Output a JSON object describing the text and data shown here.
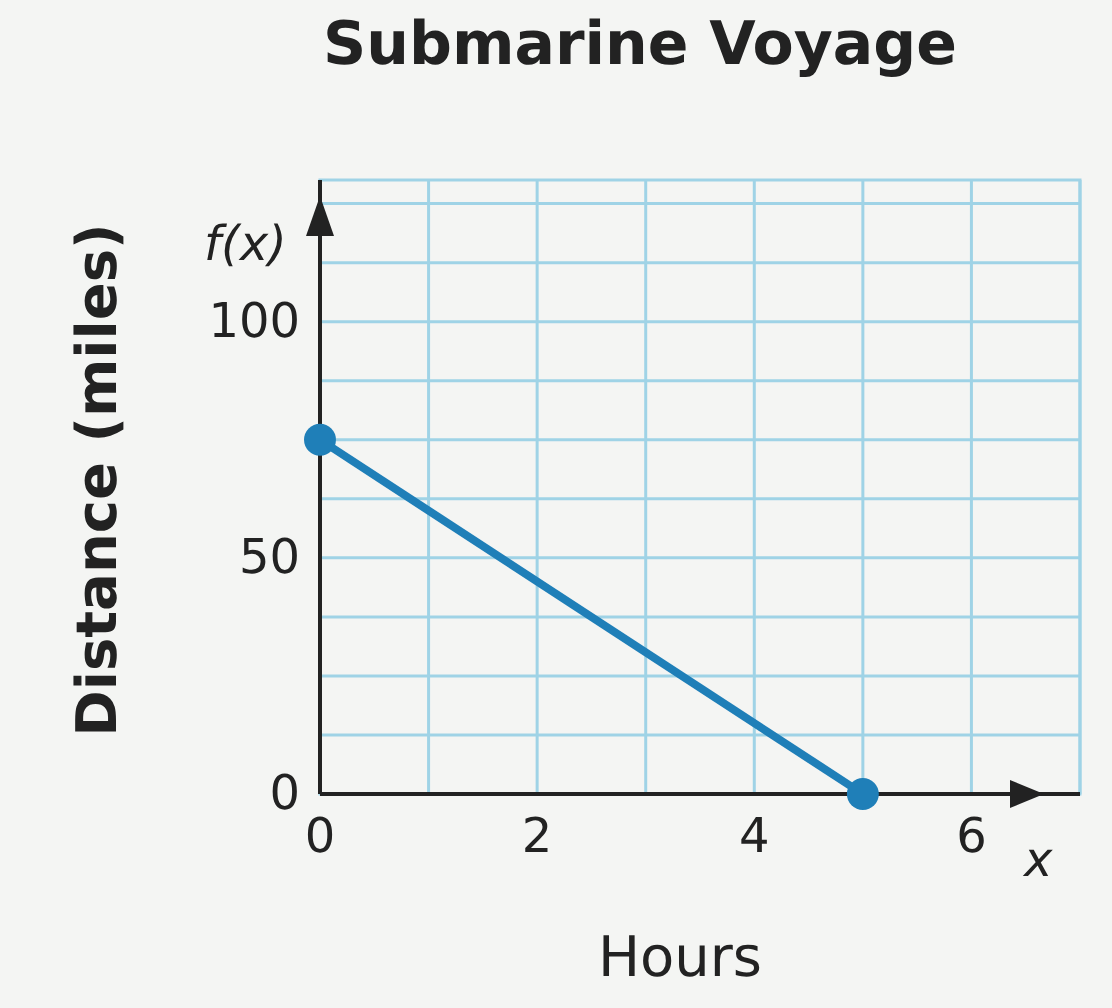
{
  "chart_data": {
    "type": "line",
    "title": "Submarine Voyage",
    "xlabel": "Hours",
    "ylabel": "Distance (miles)",
    "annotations": [
      "f(x)",
      "x"
    ],
    "x": [
      0,
      5
    ],
    "series": [
      {
        "color": "#1f7fb8",
        "values": [
          75,
          0
        ]
      }
    ],
    "marker": "circle",
    "line_style": "solid",
    "grid": true,
    "xlim": [
      0,
      7
    ],
    "xticks": [
      0,
      {
        "value": 1,
        "label": null
      },
      2,
      {
        "value": 3,
        "label": null
      },
      4,
      {
        "value": 5,
        "label": null
      },
      6,
      {
        "value": 7,
        "label": null
      }
    ],
    "ylim": [
      0,
      130
    ],
    "yticks": [
      0,
      {
        "value": 12.5,
        "label": null
      },
      {
        "value": 25,
        "label": null
      },
      {
        "value": 37.5,
        "label": null
      },
      50,
      {
        "value": 62.5,
        "label": null
      },
      {
        "value": 75,
        "label": null
      },
      {
        "value": 87.5,
        "label": null
      },
      100,
      {
        "value": 112.5,
        "label": null
      },
      {
        "value": 125,
        "label": null
      }
    ]
  }
}
